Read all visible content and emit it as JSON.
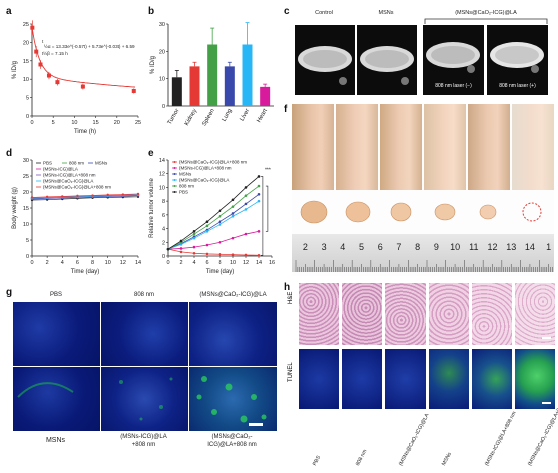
{
  "panels": {
    "a": {
      "label": "a",
      "ylabel": "% ID/g",
      "xlabel": "Time (h)",
      "xticks": [
        "0",
        "5",
        "10",
        "15",
        "20",
        "25"
      ],
      "yticks": [
        "0",
        "5",
        "10",
        "15",
        "20",
        "25"
      ],
      "annotation_line1": "t",
      "annotation_main": "½α = 13.33e^(-0.57t) + 5.73e^(-0.03t) + 6.59",
      "annotation_line2": "t½β = 7.15 h",
      "chart_data": {
        "type": "line",
        "x": [
          0.08,
          1,
          2,
          4,
          6,
          12,
          24
        ],
        "y": [
          24,
          17.5,
          14,
          11,
          9.2,
          8,
          6.8
        ],
        "yerr": [
          2,
          1.5,
          1.2,
          1.0,
          0.9,
          0.8,
          0.7
        ],
        "xlim": [
          0,
          25
        ],
        "ylim": [
          0,
          25
        ],
        "color": "#e53935"
      }
    },
    "b": {
      "label": "b",
      "ylabel": "% ID/g",
      "chart_data": {
        "type": "bar",
        "categories": [
          "Tumor",
          "Kidney",
          "Spleen",
          "Lung",
          "Liver",
          "Heart"
        ],
        "values": [
          10.5,
          14.5,
          22.5,
          14.5,
          22.5,
          7
        ],
        "errors": [
          2.5,
          1.5,
          6,
          1.5,
          8,
          1
        ],
        "colors": [
          "#222222",
          "#e53935",
          "#43a047",
          "#3949ab",
          "#29b6f6",
          "#d81b9c"
        ],
        "ylim": [
          0,
          30
        ],
        "yticks": [
          "0",
          "10",
          "20",
          "30"
        ]
      }
    },
    "c": {
      "label": "c",
      "titles": [
        "Control",
        "MSNs"
      ],
      "group_title": "(MSNs@CaO₂-ICG)@LA",
      "laser_labels": [
        "808 nm laser (−)",
        "808 nm laser (+)"
      ]
    },
    "d": {
      "label": "d",
      "ylabel": "Body weight (g)",
      "xlabel": "Time (day)",
      "legend": [
        "PBS",
        "808 nm",
        "MSNs",
        "(MSNs-ICG)@LA",
        "(MSNs-ICG)@LA+808 nm",
        "(MSNs@CaO₂-ICG)@LA",
        "(MSNs@CaO₂-ICG)@LA+808 nm"
      ],
      "chart_data": {
        "type": "line",
        "x": [
          0,
          2,
          4,
          6,
          8,
          10,
          12,
          14
        ],
        "series": [
          {
            "name": "PBS",
            "values": [
              17.5,
              17.6,
              17.8,
              18.0,
              18.2,
              18.3,
              18.4,
              18.5
            ],
            "color": "#222222"
          },
          {
            "name": "808 nm",
            "values": [
              18.0,
              18.2,
              18.4,
              18.6,
              18.7,
              18.9,
              19.0,
              19.1
            ],
            "color": "#43a047"
          },
          {
            "name": "MSNs",
            "values": [
              17.8,
              18.0,
              18.1,
              18.3,
              18.5,
              18.6,
              18.7,
              18.9
            ],
            "color": "#3949ab"
          },
          {
            "name": "(MSNs-ICG)@LA",
            "values": [
              18.2,
              18.3,
              18.5,
              18.6,
              18.8,
              18.9,
              19.1,
              19.2
            ],
            "color": "#d81b9c"
          },
          {
            "name": "(MSNs-ICG)@LA+808 nm",
            "values": [
              17.9,
              18.1,
              18.2,
              18.4,
              18.5,
              18.7,
              18.8,
              19.0
            ],
            "color": "#7e57c2"
          },
          {
            "name": "(MSNs@CaO₂-ICG)@LA",
            "values": [
              18.1,
              18.2,
              18.4,
              18.5,
              18.7,
              18.8,
              19.0,
              19.1
            ],
            "color": "#29b6f6"
          },
          {
            "name": "(MSNs@CaO₂-ICG)@LA+808 nm",
            "values": [
              18.3,
              18.5,
              18.6,
              18.8,
              18.9,
              19.1,
              19.2,
              19.4
            ],
            "color": "#e53935"
          }
        ],
        "xlim": [
          0,
          14
        ],
        "ylim": [
          0,
          30
        ],
        "xticks": [
          "0",
          "2",
          "4",
          "6",
          "8",
          "10",
          "12",
          "14"
        ],
        "yticks": [
          "0",
          "5",
          "10",
          "15",
          "20",
          "25",
          "30"
        ]
      }
    },
    "e": {
      "label": "e",
      "ylabel": "Relative tumor volume",
      "xlabel": "Time (day)",
      "legend": [
        "(MSNs@CaO₂-ICG)@LA+808 nm",
        "(MSNs-ICG)@LA+808 nm",
        "MSNs",
        "(MSNs@CaO₂-ICG)@LA",
        "808 nm",
        "PBS"
      ],
      "sig": "***",
      "chart_data": {
        "type": "line",
        "x": [
          0,
          2,
          4,
          6,
          8,
          10,
          12,
          14
        ],
        "series": [
          {
            "name": "(MSNs@CaO₂-ICG)@LA+808 nm",
            "values": [
              1,
              0.6,
              0.4,
              0.3,
              0.25,
              0.2,
              0.15,
              0.1
            ],
            "color": "#e53935"
          },
          {
            "name": "(MSNs-ICG)@LA+808 nm",
            "values": [
              1,
              1.1,
              1.3,
              1.6,
              2.0,
              2.6,
              3.2,
              3.6
            ],
            "color": "#d81b9c"
          },
          {
            "name": "MSNs",
            "values": [
              1,
              1.8,
              2.8,
              3.8,
              5.0,
              6.2,
              7.6,
              9.0
            ],
            "color": "#3949ab"
          },
          {
            "name": "(MSNs@CaO₂-ICG)@LA",
            "values": [
              1,
              1.7,
              2.6,
              3.6,
              4.6,
              5.8,
              6.8,
              8.0
            ],
            "color": "#29b6f6"
          },
          {
            "name": "808 nm",
            "values": [
              1,
              2.0,
              3.2,
              4.4,
              5.8,
              7.2,
              8.8,
              10.2
            ],
            "color": "#43a047"
          },
          {
            "name": "PBS",
            "values": [
              1,
              2.2,
              3.6,
              5.0,
              6.6,
              8.2,
              10.0,
              11.6
            ],
            "color": "#222222"
          }
        ],
        "xlim": [
          0,
          16
        ],
        "ylim": [
          0,
          14
        ],
        "xticks": [
          "0",
          "2",
          "4",
          "6",
          "8",
          "10",
          "12",
          "14",
          "16"
        ],
        "yticks": [
          "0",
          "2",
          "4",
          "6",
          "8",
          "10",
          "12",
          "14"
        ]
      }
    },
    "f": {
      "label": "f",
      "ruler_numbers": [
        "2",
        "3",
        "4",
        "5",
        "6",
        "7",
        "8",
        "9",
        "10",
        "11",
        "12",
        "13",
        "14",
        "1"
      ]
    },
    "g": {
      "label": "g",
      "top_titles": [
        "PBS",
        "808 nm",
        "(MSNs@CaO₂-ICG)@LA"
      ],
      "bottom_titles": [
        "MSNs",
        "(MSNs-ICG)@LA\n+808 nm",
        "(MSNs@CaO₂-\nICG)@LA+808 nm"
      ]
    },
    "h": {
      "label": "h",
      "row_labels": [
        "H&E",
        "TUNEL"
      ],
      "col_labels": [
        "PBS",
        "808 nm",
        "(MSNs@CaO₂-ICG)@LA",
        "MSNs",
        "(MSNs-ICG)@LA+808 nm",
        "(MSNs@CaO₂-ICG)@LA+808 nm"
      ]
    }
  }
}
